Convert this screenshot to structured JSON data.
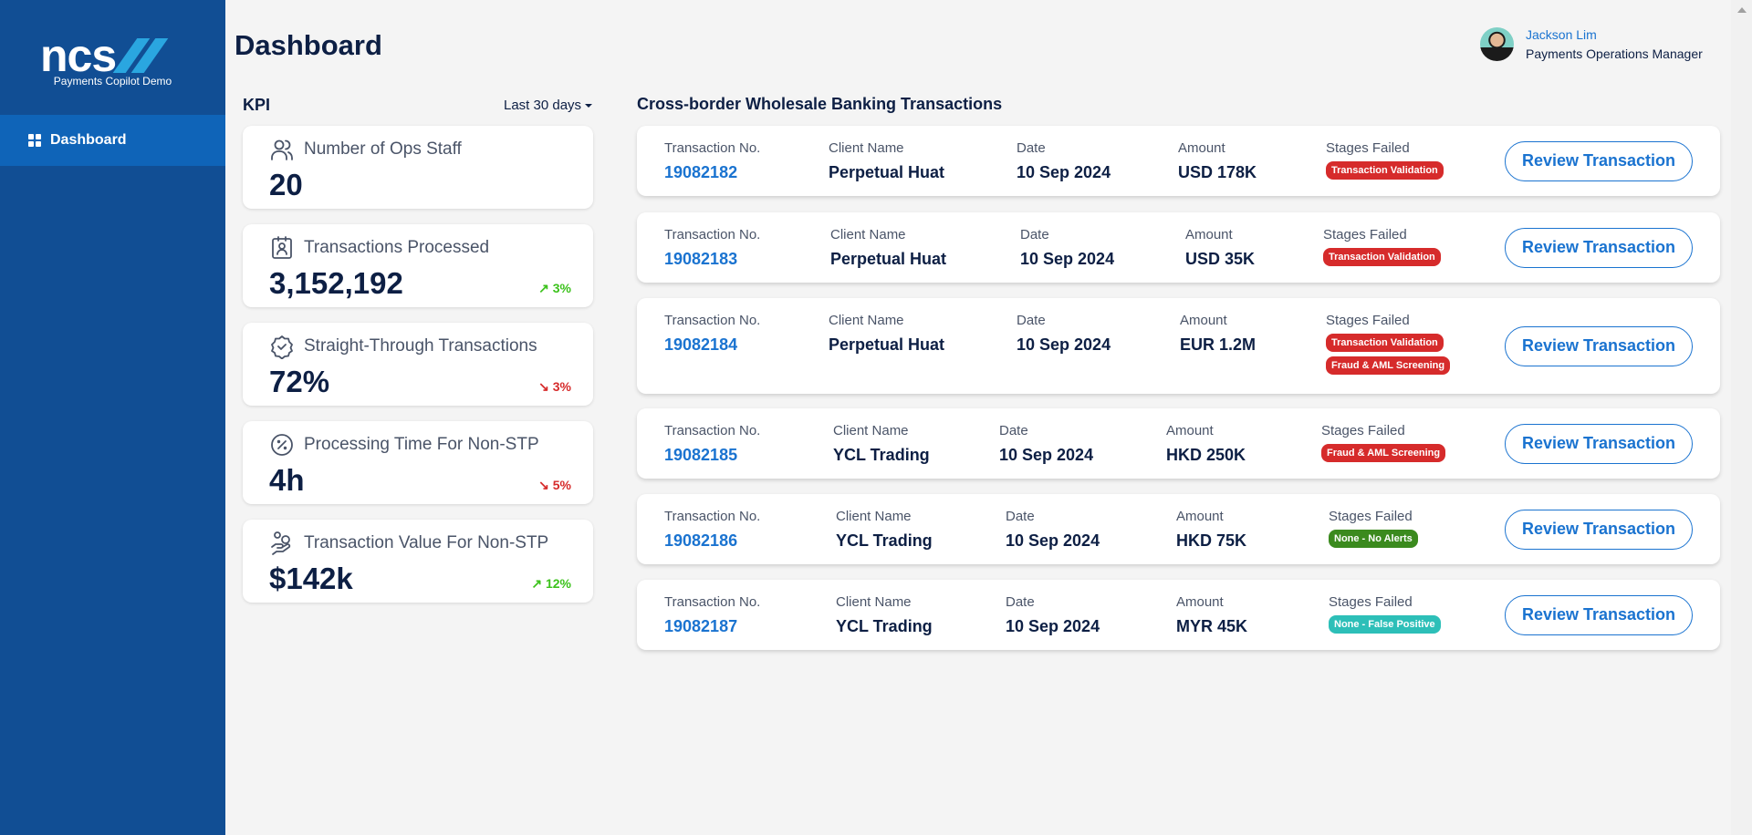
{
  "app": {
    "logo": "ncs",
    "subtitle": "Payments Copilot Demo"
  },
  "sidebar": {
    "items": [
      {
        "label": "Dashboard",
        "icon": "dashboard-icon"
      }
    ]
  },
  "header": {
    "title": "Dashboard"
  },
  "user": {
    "name": "Jackson Lim",
    "role": "Payments Operations Manager"
  },
  "kpi": {
    "title": "KPI",
    "range": "Last 30 days",
    "cards": [
      {
        "label": "Number of Ops Staff",
        "value": "20",
        "trend": "",
        "icon": "users-icon"
      },
      {
        "label": "Transactions Processed",
        "value": "3,152,192",
        "trend": "3%",
        "dir": "up",
        "icon": "badge-id-icon"
      },
      {
        "label": "Straight-Through Transactions",
        "value": "72%",
        "trend": "3%",
        "dir": "down",
        "icon": "rosette-check-icon"
      },
      {
        "label": "Processing Time For Non-STP",
        "value": "4h",
        "trend": "5%",
        "dir": "down",
        "icon": "percent-clock-icon"
      },
      {
        "label": "Transaction Value For Non-STP",
        "value": "$142k",
        "trend": "12%",
        "dir": "up",
        "icon": "hand-coins-icon"
      }
    ]
  },
  "transactions": {
    "title": "Cross-border Wholesale Banking Transactions",
    "labels": {
      "no": "Transaction No.",
      "client": "Client Name",
      "date": "Date",
      "amount": "Amount",
      "stages": "Stages Failed",
      "review": "Review Transaction"
    },
    "colors": {
      "red": "#d62b2b",
      "green": "#3b8a1e",
      "teal": "#2dbfb8"
    },
    "rows": [
      {
        "no": "19082182",
        "client": "Perpetual Huat",
        "date": "10 Sep 2024",
        "amount": "USD 178K",
        "stages": [
          {
            "text": "Transaction Validation",
            "color": "red"
          }
        ]
      },
      {
        "no": "19082183",
        "client": "Perpetual Huat",
        "date": "10 Sep 2024",
        "amount": "USD 35K",
        "stages": [
          {
            "text": "Transaction Validation",
            "color": "red"
          }
        ]
      },
      {
        "no": "19082184",
        "client": "Perpetual Huat",
        "date": "10 Sep 2024",
        "amount": "EUR 1.2M",
        "stages": [
          {
            "text": "Transaction Validation",
            "color": "red"
          },
          {
            "text": "Fraud & AML Screening",
            "color": "red"
          }
        ]
      },
      {
        "no": "19082185",
        "client": "YCL Trading",
        "date": "10 Sep 2024",
        "amount": "HKD 250K",
        "stages": [
          {
            "text": "Fraud & AML Screening",
            "color": "red"
          }
        ]
      },
      {
        "no": "19082186",
        "client": "YCL Trading",
        "date": "10 Sep 2024",
        "amount": "HKD 75K",
        "stages": [
          {
            "text": "None - No Alerts",
            "color": "green"
          }
        ]
      },
      {
        "no": "19082187",
        "client": "YCL Trading",
        "date": "10 Sep 2024",
        "amount": "MYR 45K",
        "stages": [
          {
            "text": "None - False Positive",
            "color": "teal"
          }
        ]
      }
    ]
  }
}
